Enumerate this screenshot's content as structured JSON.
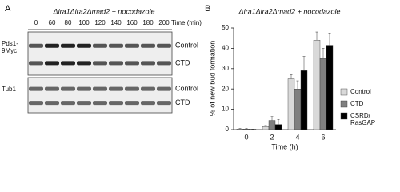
{
  "panel_a": {
    "label": "A",
    "title": "Δira1Δira2Δmad2 + nocodazole",
    "time_labels": [
      "0",
      "60",
      "80",
      "100",
      "120",
      "140",
      "160",
      "180",
      "200"
    ],
    "time_unit": "Time (min)",
    "rows": [
      {
        "protein": "Pds1-9Myc",
        "conditions": [
          "Control",
          "CTD"
        ]
      },
      {
        "protein": "Tub1",
        "conditions": [
          "Control",
          "CTD"
        ]
      }
    ]
  },
  "chart_data": {
    "type": "bar",
    "label": "B",
    "title": "Δira1Δira2Δmad2 + nocodazole",
    "x_label": "Time (h)",
    "y_label": "% of new bud formation",
    "categories": [
      "0",
      "2",
      "4",
      "6"
    ],
    "series": [
      {
        "name": "Control",
        "color": "#d9d9d9",
        "values": [
          0.3,
          1.5,
          25,
          44
        ],
        "errors": [
          0.2,
          0.5,
          2,
          4
        ]
      },
      {
        "name": "CTD",
        "color": "#7f7f7f",
        "values": [
          0.3,
          4.5,
          20,
          35
        ],
        "errors": [
          0.2,
          2,
          4,
          5
        ]
      },
      {
        "name": "CSRD/ RasGAP",
        "color": "#000000",
        "values": [
          0.2,
          2.5,
          29,
          41.5
        ],
        "errors": [
          0.1,
          2.5,
          7,
          6
        ]
      }
    ],
    "ylim": [
      0,
      50
    ],
    "yticks": [
      0,
      10,
      20,
      30,
      40,
      50
    ]
  }
}
